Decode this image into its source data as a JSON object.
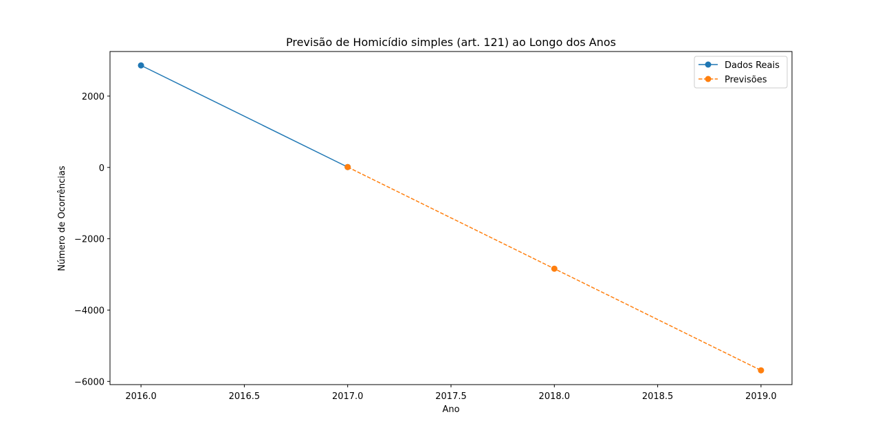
{
  "chart_data": {
    "type": "line",
    "title": "Previsão de Homicídio simples (art. 121) ao Longo dos Anos",
    "xlabel": "Ano",
    "ylabel": "Número de Ocorrências",
    "xlim": [
      2015.85,
      2019.15
    ],
    "ylim": [
      -6090,
      3250
    ],
    "xticks": [
      2016.0,
      2016.5,
      2017.0,
      2017.5,
      2018.0,
      2018.5,
      2019.0
    ],
    "xtick_labels": [
      "2016.0",
      "2016.5",
      "2017.0",
      "2017.5",
      "2018.0",
      "2018.5",
      "2019.0"
    ],
    "yticks": [
      2000,
      0,
      -2000,
      -4000,
      -6000
    ],
    "ytick_labels": [
      "2000",
      "0",
      "−2000",
      "−4000",
      "−6000"
    ],
    "grid": false,
    "legend_position": "top-right",
    "series": [
      {
        "name": "Dados Reais",
        "color": "#1f77b4",
        "linestyle": "solid",
        "marker": "circle",
        "x": [
          2016,
          2017
        ],
        "y": [
          2860,
          10
        ]
      },
      {
        "name": "Previsões",
        "color": "#ff7f0e",
        "linestyle": "dashed",
        "marker": "circle",
        "x": [
          2017,
          2018,
          2019
        ],
        "y": [
          10,
          -2840,
          -5690
        ]
      }
    ]
  }
}
